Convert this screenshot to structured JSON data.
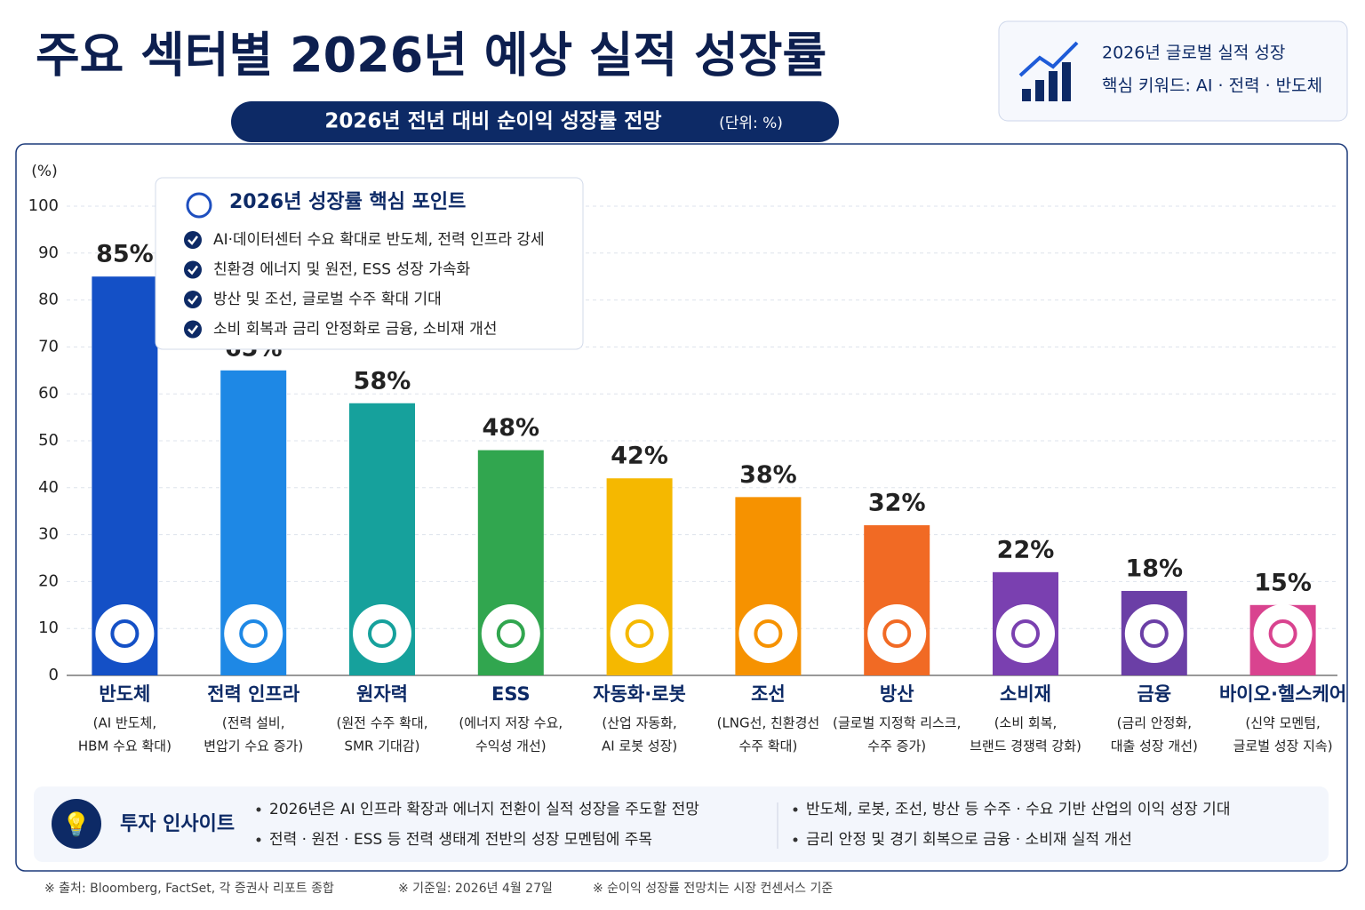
{
  "header": {
    "title": "주요 섹터별 2026년 예상 실적 성장률",
    "subtitle": "2026년 전년 대비 순이익 성장률 전망",
    "subtitle_unit": "(단위: %)",
    "badge": [
      "2026년 글로벌 실적 성장",
      "핵심 키워드: AI · 전력 · 반도체"
    ]
  },
  "chart_data": {
    "type": "bar",
    "y_unit": "(%)",
    "callout": {
      "title": "2026년 성장률 핵심 포인트",
      "points": [
        "AI·데이터센터 수요 확대로 반도체, 전력 인프라 강세",
        "친환경 에너지 및 원전, ESS 성장 가속화",
        "방산 및 조선, 글로벌 수주 확대 기대",
        "소비 회복과 금리 안정화로 금융, 소비재 개선"
      ]
    },
    "categories": [
      "반도체",
      "전력 인프라",
      "원자력",
      "ESS",
      "자동화·로봇",
      "조선",
      "방산",
      "소비재",
      "금융",
      "바이오·헬스케어"
    ],
    "category_notes": [
      [
        "(AI 반도체,",
        "HBM 수요 확대)"
      ],
      [
        "(전력 설비,",
        "변압기 수요 증가)"
      ],
      [
        "(원전 수주 확대,",
        "SMR 기대감)"
      ],
      [
        "(에너지 저장 수요,",
        "수익성 개선)"
      ],
      [
        "(산업 자동화,",
        "AI 로봇 성장)"
      ],
      [
        "(LNG선, 친환경선",
        "수주 확대)"
      ],
      [
        "(글로벌 지정학 리스크,",
        "수주 증가)"
      ],
      [
        "(소비 회복,",
        "브랜드 경쟁력 강화)"
      ],
      [
        "(금리 안정화,",
        "대출 성장 개선)"
      ],
      [
        "(신약 모멘텀,",
        "글로벌 성장 지속)"
      ]
    ],
    "values": [
      85,
      65,
      58,
      48,
      42,
      38,
      32,
      22,
      18,
      15
    ],
    "value_labels": [
      "85%",
      "65%",
      "58%",
      "48%",
      "42%",
      "38%",
      "32%",
      "22%",
      "18%",
      "15%"
    ],
    "colors": [
      "#1450c6",
      "#1e88e5",
      "#16a19c",
      "#31a64f",
      "#f5b800",
      "#f69200",
      "#f16a24",
      "#7a40b0",
      "#6b3fa6",
      "#d9438f"
    ],
    "ylim": [
      0,
      100
    ],
    "yticks": [
      0,
      10,
      20,
      30,
      40,
      50,
      60,
      70,
      80,
      90,
      100
    ],
    "grid": true
  },
  "insight": {
    "title": "투자 인사이트",
    "points": [
      "2026년은 AI 인프라 확장과 에너지 전환이 실적 성장을 주도할 전망",
      "전력 · 원전 · ESS 등 전력 생태계 전반의 성장 모멘텀에 주목",
      "반도체, 로봇, 조선, 방산 등 수주 · 수요 기반 산업의 이익 성장 기대",
      "금리 안정 및 경기 회복으로 금융 · 소비재 실적 개선"
    ]
  },
  "footer": [
    "※ 출처: Bloomberg, FactSet, 각 증권사 리포트 종합",
    "※ 기준일: 2026년 4월 27일",
    "※ 순이익 성장률 전망치는 시장 컨센서스 기준"
  ]
}
